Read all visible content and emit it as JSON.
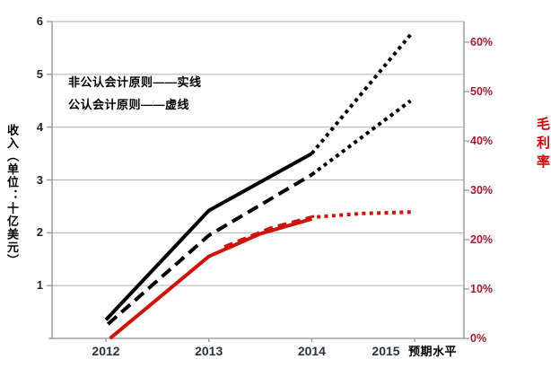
{
  "chart_data": {
    "type": "line",
    "categories": [
      "2012",
      "2013",
      "2014",
      "2015"
    ],
    "x_axis_note": "预期水平",
    "legend_lines": [
      "非公认会计原则——实线",
      "公认会计原则——虚线"
    ],
    "left_axis": {
      "label": "收入（单位：十亿美元）",
      "ticks": [
        6,
        5,
        4,
        3,
        2,
        1
      ],
      "range": [
        0,
        6
      ]
    },
    "right_axis": {
      "label": "毛利率",
      "ticks": [
        "60%",
        "50%",
        "40%",
        "30%",
        "20%",
        "10%",
        "0%"
      ],
      "tick_values_pct": [
        60,
        50,
        40,
        30,
        20,
        10,
        0
      ],
      "range_pct": [
        0,
        64
      ]
    },
    "series": [
      {
        "name": "收入 非公认会计原则（实线）",
        "axis": "left",
        "style": "solid",
        "values": {
          "2012": 0.35,
          "2013": 2.4,
          "2014": 3.5
        },
        "projected": {
          "2015": 5.8
        }
      },
      {
        "name": "收入 公认会计原则（虚线）",
        "axis": "left",
        "style": "dashed",
        "values": {
          "2012": 0.3,
          "2013": 1.95,
          "2014": 3.1
        },
        "projected": {
          "2015": 4.5
        }
      },
      {
        "name": "毛利率 非公认会计原则（实线）",
        "axis": "right",
        "style": "solid",
        "values_pct": {
          "2012": 0,
          "2013": 16.5,
          "2014": 24
        },
        "projected_pct": {
          "2015": 25.5
        }
      },
      {
        "name": "毛利率 公认会计原则（虚线）",
        "axis": "right",
        "style": "dashed",
        "values_pct": {
          "2013": 17,
          "2014": 24.5
        },
        "projected_pct": {
          "2015": 25.5
        }
      }
    ],
    "lines": [
      {
        "id": "revenue-nongaap-actual-line",
        "axis": "left",
        "dash": "solid",
        "w": 4,
        "pts": [
          [
            0,
            0.35
          ],
          [
            1,
            2.42
          ],
          [
            2,
            3.5
          ]
        ]
      },
      {
        "id": "revenue-nongaap-projected-line",
        "axis": "left",
        "dash": "dotted",
        "w": 4,
        "pts": [
          [
            2,
            3.5
          ],
          [
            2.98,
            5.8
          ]
        ]
      },
      {
        "id": "revenue-gaap-actual-line",
        "axis": "left",
        "dash": "dashed",
        "w": 4,
        "pts": [
          [
            0.02,
            0.27
          ],
          [
            1,
            1.95
          ],
          [
            2,
            3.1
          ]
        ]
      },
      {
        "id": "revenue-gaap-projected-line",
        "axis": "left",
        "dash": "dotted",
        "w": 4,
        "pts": [
          [
            2,
            3.1
          ],
          [
            2.96,
            4.5
          ]
        ]
      },
      {
        "id": "margin-nongaap-actual-line",
        "axis": "right",
        "dash": "solid",
        "w": 4,
        "pts": [
          [
            0.04,
            0
          ],
          [
            1,
            16.6
          ],
          [
            1.5,
            21.2
          ],
          [
            2,
            24.2
          ]
        ]
      },
      {
        "id": "margin-gaap-actual-line",
        "axis": "right",
        "dash": "reddash",
        "w": 3.2,
        "pts": [
          [
            1.15,
            18.6
          ],
          [
            1.6,
            22.4
          ],
          [
            2.05,
            24.9
          ]
        ]
      },
      {
        "id": "margin-projected-line",
        "axis": "right",
        "dash": "dotted",
        "w": 4,
        "pts": [
          [
            2.05,
            24.6
          ],
          [
            2.5,
            25.3
          ],
          [
            2.98,
            25.6
          ]
        ]
      }
    ],
    "colors": {
      "revenue_line": "#000000",
      "margin_line": "#cb1508",
      "pct_labels": "#9e1b32",
      "right_axis_title": "#cc0000",
      "year_labels": "#2a323e",
      "grid": "#b0b0b0",
      "axis": "#8f8f8f"
    }
  }
}
